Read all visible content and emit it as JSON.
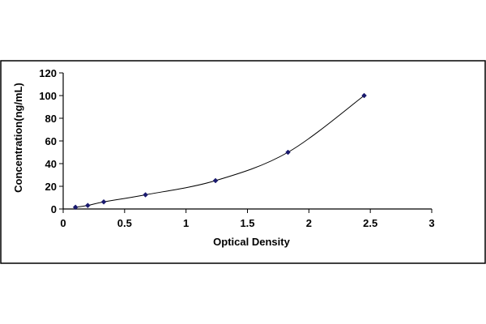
{
  "chart_data": {
    "type": "scatter",
    "title": "",
    "xlabel": "Optical Density",
    "ylabel": "Concentration(ng/mL)",
    "xlim": [
      0,
      3
    ],
    "ylim": [
      0,
      120
    ],
    "x_ticks": [
      0,
      0.5,
      1,
      1.5,
      2,
      2.5,
      3
    ],
    "x_tick_labels": [
      "0",
      "0.5",
      "1",
      "1.5",
      "2",
      "2.5",
      "3"
    ],
    "y_ticks": [
      0,
      20,
      40,
      60,
      80,
      100,
      120
    ],
    "y_tick_labels": [
      "0",
      "20",
      "40",
      "60",
      "80",
      "100",
      "120"
    ],
    "grid": false,
    "legend": "none",
    "fit_line": "smooth curve through points",
    "series": [
      {
        "x": [
          0.1,
          0.2,
          0.33,
          0.67,
          1.24,
          1.83,
          2.45
        ],
        "y": [
          1.56,
          3.12,
          6.25,
          12.5,
          25,
          50,
          100
        ]
      }
    ],
    "colors": {
      "marker": "#1a1a6e",
      "line": "#000000",
      "frame": "#000000"
    }
  }
}
